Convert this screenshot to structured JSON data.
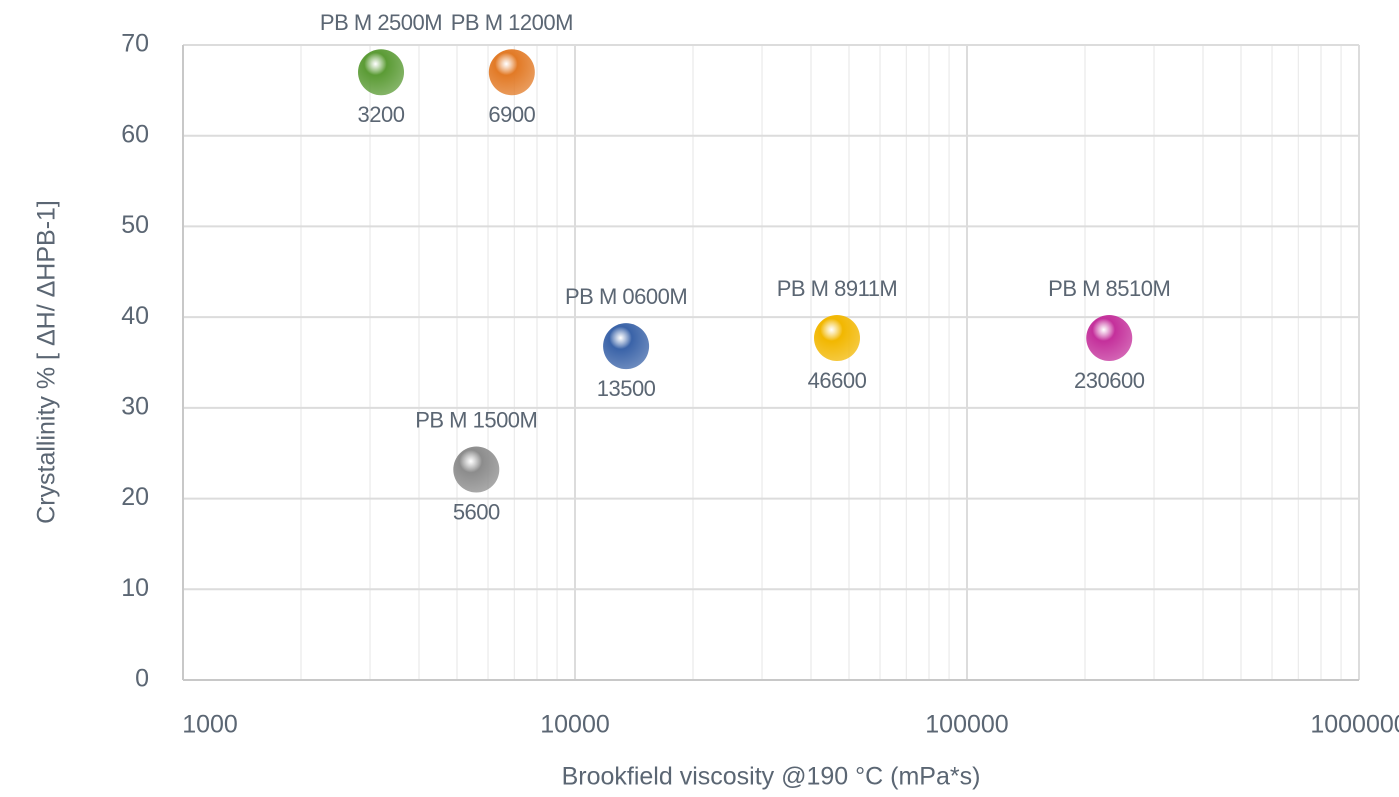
{
  "chart_data": {
    "type": "scatter",
    "x_label": "Brookfield viscosity @190   °C (mPa*s)",
    "y_label": "Crystallinity % [  ΔH/ ΔHPB-1]",
    "xscale": "log",
    "xlim": [
      1000,
      1000000
    ],
    "xticks": [
      1000,
      10000,
      100000,
      1000000
    ],
    "ylim": [
      0,
      70
    ],
    "yticks": [
      0,
      10,
      20,
      30,
      40,
      50,
      60,
      70
    ],
    "grid": true,
    "series": [
      {
        "name": "PB M 2500M",
        "color": "#5b9b35",
        "x": [
          3200
        ],
        "values": [
          67
        ]
      },
      {
        "name": "PB M 1200M",
        "color": "#e27a26",
        "x": [
          6900
        ],
        "values": [
          67
        ]
      },
      {
        "name": "PB M 0600M",
        "color": "#3a63a8",
        "x": [
          13500
        ],
        "values": [
          36.8
        ]
      },
      {
        "name": "PB M 8911M",
        "color": "#f2b700",
        "x": [
          46600
        ],
        "values": [
          37.7
        ]
      },
      {
        "name": "PB M 8510M",
        "color": "#c4309b",
        "x": [
          230600
        ],
        "values": [
          37.7
        ]
      },
      {
        "name": "PB M 1500M",
        "color": "#8c8c8c",
        "x": [
          5600
        ],
        "values": [
          23.2
        ]
      }
    ]
  }
}
